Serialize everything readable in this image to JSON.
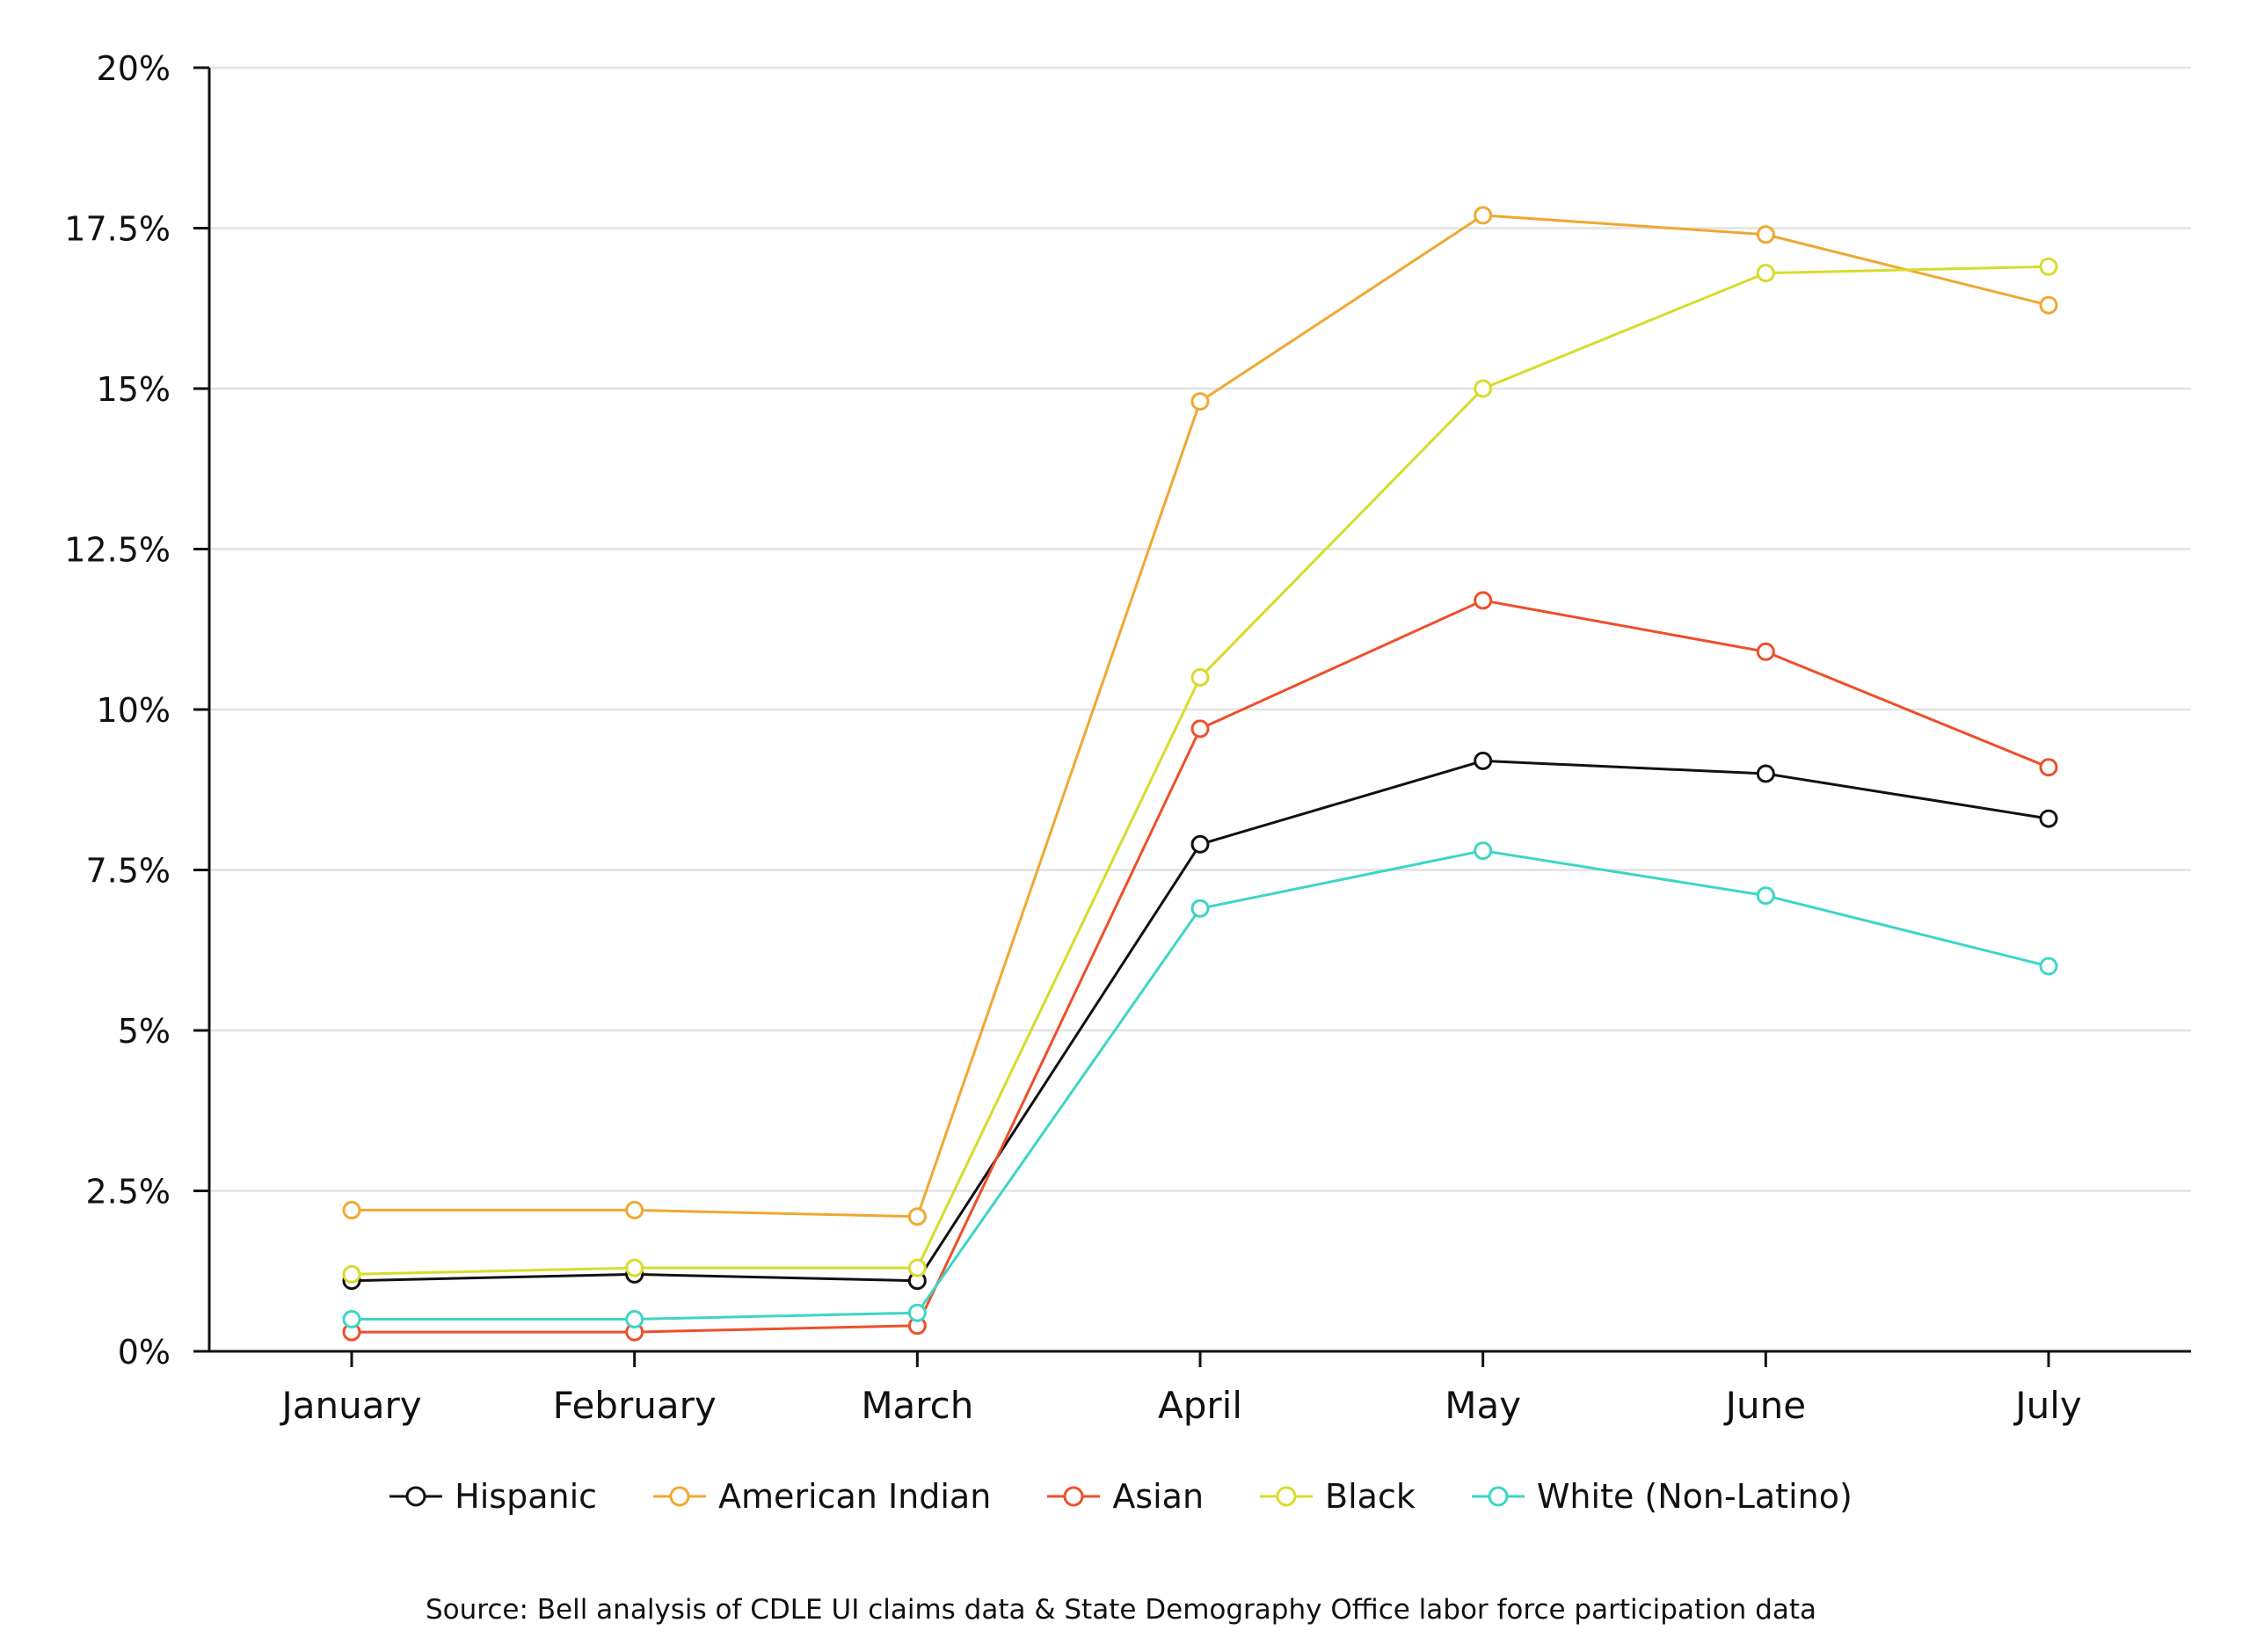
{
  "chart_data": {
    "type": "line",
    "categories": [
      "January",
      "February",
      "March",
      "April",
      "May",
      "June",
      "July"
    ],
    "ylim": [
      0,
      20
    ],
    "yticks": [
      0,
      2.5,
      5,
      7.5,
      10,
      12.5,
      15,
      17.5,
      20
    ],
    "ytick_labels": [
      "0%",
      "2.5%",
      "5%",
      "7.5%",
      "10%",
      "12.5%",
      "15%",
      "17.5%",
      "20%"
    ],
    "grid": true,
    "legend_position": "bottom-center",
    "series": [
      {
        "name": "Hispanic",
        "color": "#111111",
        "values": [
          1.1,
          1.2,
          1.1,
          7.9,
          9.2,
          9.0,
          8.3
        ]
      },
      {
        "name": "American Indian",
        "color": "#f0a830",
        "values": [
          2.2,
          2.2,
          2.1,
          14.8,
          17.7,
          17.4,
          16.3
        ]
      },
      {
        "name": "Asian",
        "color": "#ee4f2a",
        "values": [
          0.3,
          0.3,
          0.4,
          9.7,
          11.7,
          10.9,
          9.1
        ]
      },
      {
        "name": "Black",
        "color": "#d7dc2a",
        "values": [
          1.2,
          1.3,
          1.3,
          10.5,
          15.0,
          16.8,
          16.9
        ]
      },
      {
        "name": "White (Non-Latino)",
        "color": "#3cd6c6",
        "values": [
          0.5,
          0.5,
          0.6,
          6.9,
          7.8,
          7.1,
          6.0
        ]
      }
    ],
    "source": "Source: Bell analysis of CDLE UI claims data & State Demography Office labor force participation data"
  }
}
